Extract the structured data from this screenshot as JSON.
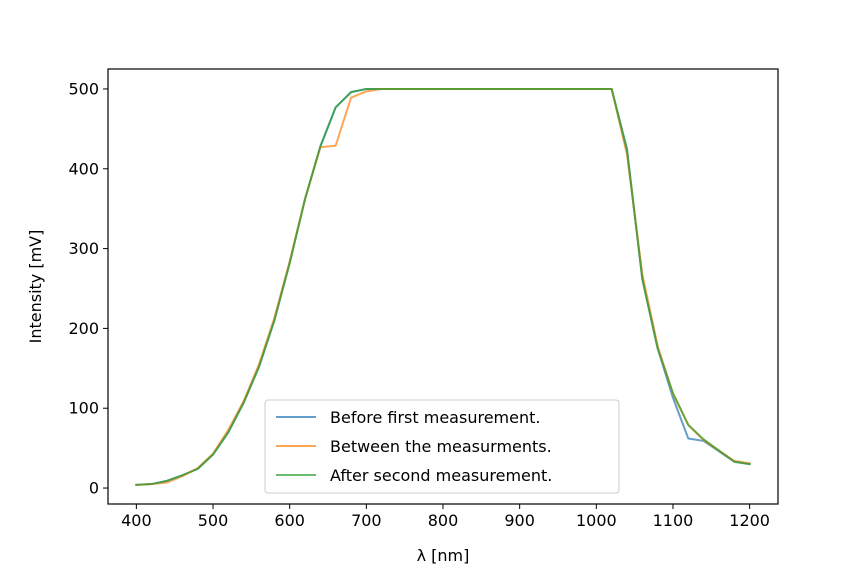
{
  "chart_data": {
    "type": "line",
    "title": "",
    "xlabel": "λ [nm]",
    "ylabel": "Intensity [mV]",
    "xlim": [
      363,
      1237
    ],
    "ylim": [
      -20,
      525
    ],
    "xticks": [
      400,
      500,
      600,
      700,
      800,
      900,
      1000,
      1100,
      1200
    ],
    "yticks": [
      0,
      100,
      200,
      300,
      400,
      500
    ],
    "grid": false,
    "legend_position": "lower center",
    "x": [
      400,
      420,
      440,
      460,
      480,
      500,
      520,
      540,
      560,
      580,
      600,
      620,
      640,
      660,
      680,
      700,
      720,
      740,
      760,
      780,
      800,
      820,
      840,
      860,
      880,
      900,
      920,
      940,
      960,
      980,
      1000,
      1020,
      1040,
      1060,
      1080,
      1100,
      1120,
      1140,
      1160,
      1180,
      1200
    ],
    "series": [
      {
        "name": "Before first measurement.",
        "color": "#1f77b4",
        "values": [
          4,
          5,
          9,
          16,
          24,
          42,
          70,
          107,
          152,
          210,
          282,
          362,
          428,
          477,
          496,
          500,
          500,
          500,
          500,
          500,
          500,
          500,
          500,
          500,
          500,
          500,
          500,
          500,
          500,
          500,
          500,
          500,
          425,
          262,
          175,
          113,
          62,
          59,
          46,
          33,
          30
        ]
      },
      {
        "name": "Between the measurments.",
        "color": "#ff7f0e",
        "values": [
          4,
          5,
          7,
          15,
          25,
          43,
          73,
          109,
          155,
          213,
          284,
          362,
          427,
          429,
          489,
          497,
          500,
          500,
          500,
          500,
          500,
          500,
          500,
          500,
          500,
          500,
          500,
          500,
          500,
          500,
          500,
          500,
          418,
          268,
          178,
          118,
          79,
          60,
          47,
          34,
          31
        ]
      },
      {
        "name": "After second measurement.",
        "color": "#2ca02c",
        "values": [
          4,
          5,
          9,
          16,
          24,
          42,
          70,
          107,
          152,
          210,
          282,
          362,
          428,
          477,
          496,
          500,
          500,
          500,
          500,
          500,
          500,
          500,
          500,
          500,
          500,
          500,
          500,
          500,
          500,
          500,
          500,
          500,
          423,
          262,
          175,
          119,
          79,
          61,
          47,
          33,
          30
        ]
      }
    ]
  }
}
